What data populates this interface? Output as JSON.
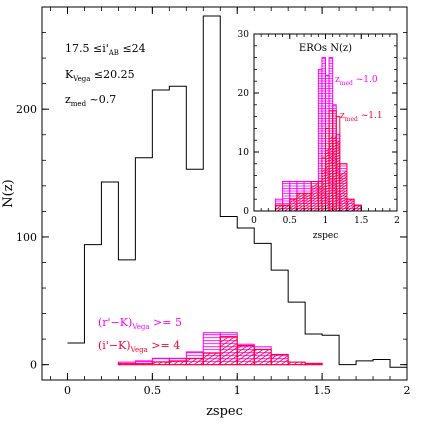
{
  "chart_data": [
    {
      "type": "histogram",
      "xlabel": "zspec",
      "ylabel": "N(z)",
      "xlim": [
        -0.15,
        2.0
      ],
      "ylim": [
        -12,
        280
      ],
      "xticks": [
        0,
        0.5,
        1,
        1.5,
        2
      ],
      "xtick_labels": [
        "0",
        "0.5",
        "1",
        "1.5",
        "2"
      ],
      "yticks": [
        0,
        100,
        200
      ],
      "ytick_labels": [
        "0",
        "100",
        "200"
      ],
      "grid": false,
      "bin_edges": [
        0.0,
        0.1,
        0.2,
        0.3,
        0.4,
        0.5,
        0.6,
        0.7,
        0.8,
        0.9,
        1.0,
        1.1,
        1.2,
        1.3,
        1.4,
        1.5,
        1.6,
        1.7,
        1.8,
        1.9,
        2.0
      ],
      "series": [
        {
          "role": "all",
          "color": "#000000",
          "style": "step",
          "values": [
            17,
            94,
            143,
            82,
            162,
            215,
            218,
            153,
            273,
            116,
            107,
            95,
            74,
            49,
            24,
            23,
            0,
            3,
            4,
            -2
          ]
        },
        {
          "role": "r-K",
          "color": "#ff00ff",
          "style": "hatch-horizontal",
          "values": [
            0,
            0,
            0,
            2,
            3,
            5,
            5,
            10,
            25,
            25,
            16,
            14,
            8,
            2,
            1,
            0,
            0,
            0,
            0,
            0
          ]
        },
        {
          "role": "i-K",
          "color": "#ff0033",
          "style": "hatch-diagonal",
          "values": [
            0,
            0,
            0,
            1,
            1,
            2,
            3,
            5,
            9,
            22,
            15,
            12,
            8,
            2,
            1,
            0,
            0,
            0,
            0,
            0
          ]
        }
      ],
      "annotations": {
        "line1": {
          "pre": "17.5  ≤i'",
          "sub": "AB",
          "post": "  ≤24"
        },
        "line2": {
          "pre": "K",
          "sub": "Vega",
          "post": "  ≤20.25"
        },
        "line3": {
          "pre": "z",
          "sub": "med",
          "post": "  ~0.7"
        }
      },
      "legend": [
        {
          "pre": "(r'−K)",
          "sub": "Vega",
          "post": "  >=  5",
          "color": "#ff00ff"
        },
        {
          "pre": "(i'−K)",
          "sub": "Vega",
          "post": "  >=  4",
          "color": "#ff0033"
        }
      ]
    },
    {
      "type": "histogram",
      "title": "EROs N(z)",
      "xlabel": "zspec",
      "xlim": [
        0,
        2
      ],
      "ylim": [
        0,
        30
      ],
      "xticks": [
        0,
        0.5,
        1,
        1.5,
        2
      ],
      "xtick_labels": [
        "0",
        "0.5",
        "1",
        "1.5",
        "2"
      ],
      "yticks": [
        0,
        10,
        20,
        30
      ],
      "ytick_labels": [
        "0",
        "10",
        "20",
        "30"
      ],
      "grid": false,
      "bin_edges": [
        0.3,
        0.4,
        0.5,
        0.6,
        0.7,
        0.8,
        0.9,
        0.95,
        1.0,
        1.05,
        1.1,
        1.15,
        1.2,
        1.3,
        1.4,
        1.5
      ],
      "series": [
        {
          "role": "r-K",
          "color": "#ff00ff",
          "style": "hatch-horizontal",
          "values": [
            2,
            5,
            5,
            5,
            5,
            5,
            24,
            26,
            23,
            26,
            18,
            13,
            8,
            2,
            1
          ]
        },
        {
          "role": "i-K",
          "color": "#ff0033",
          "style": "hatch-diagonal",
          "values": [
            1,
            1,
            2,
            3,
            3,
            5,
            5,
            9,
            14,
            17,
            17,
            16,
            8,
            2,
            1
          ]
        }
      ],
      "annotations": [
        {
          "pre": "z",
          "sub": "med",
          "post": " ~1.0",
          "color": "#ff00ff"
        },
        {
          "pre": "z",
          "sub": "med",
          "post": " ~1.1",
          "color": "#ff0033"
        }
      ]
    }
  ]
}
